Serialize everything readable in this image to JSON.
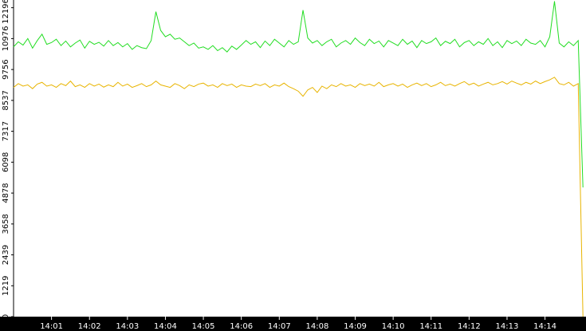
{
  "chart_data": {
    "type": "line",
    "x": [
      0,
      0.125,
      0.25,
      0.375,
      0.5,
      0.625,
      0.75,
      0.875,
      1,
      1.125,
      1.25,
      1.375,
      1.5,
      1.625,
      1.75,
      1.875,
      2,
      2.125,
      2.25,
      2.375,
      2.5,
      2.625,
      2.75,
      2.875,
      3,
      3.125,
      3.25,
      3.375,
      3.5,
      3.625,
      3.75,
      3.875,
      4,
      4.125,
      4.25,
      4.375,
      4.5,
      4.625,
      4.75,
      4.875,
      5,
      5.125,
      5.25,
      5.375,
      5.5,
      5.625,
      5.75,
      5.875,
      6,
      6.125,
      6.25,
      6.375,
      6.5,
      6.625,
      6.75,
      6.875,
      7,
      7.125,
      7.25,
      7.375,
      7.5,
      7.625,
      7.75,
      7.875,
      8,
      8.125,
      8.25,
      8.375,
      8.5,
      8.625,
      8.75,
      8.875,
      9,
      9.125,
      9.25,
      9.375,
      9.5,
      9.625,
      9.75,
      9.875,
      10,
      10.125,
      10.25,
      10.375,
      10.5,
      10.625,
      10.75,
      10.875,
      11,
      11.125,
      11.25,
      11.375,
      11.5,
      11.625,
      11.75,
      11.875,
      12,
      12.125,
      12.25,
      12.375,
      12.5,
      12.625,
      12.75,
      12.875,
      13,
      13.125,
      13.25,
      13.375,
      13.5,
      13.625,
      13.75,
      13.875,
      14,
      14.125,
      14.25,
      14.375,
      14.5,
      14.625,
      14.75,
      14.875,
      15
    ],
    "series": [
      {
        "color": "#22dd22",
        "values": [
          10650,
          10850,
          10720,
          10980,
          10600,
          10900,
          11150,
          10750,
          10820,
          10950,
          10700,
          10880,
          10650,
          10800,
          10920,
          10600,
          10870,
          10750,
          10830,
          10680,
          10900,
          10700,
          10820,
          10650,
          10780,
          10550,
          10700,
          10620,
          10580,
          10900,
          12040,
          11300,
          11050,
          11150,
          10950,
          11000,
          10850,
          10700,
          10800,
          10600,
          10650,
          10550,
          10700,
          10500,
          10620,
          10450,
          10680,
          10550,
          10720,
          10900,
          10750,
          10850,
          10620,
          10880,
          10700,
          10950,
          10800,
          10650,
          10900,
          10750,
          10850,
          12100,
          11000,
          10800,
          10900,
          10700,
          10850,
          10950,
          10650,
          10800,
          10900,
          10750,
          11000,
          10820,
          10700,
          10950,
          10780,
          10880,
          10650,
          10900,
          10800,
          10700,
          10950,
          10750,
          10880,
          10620,
          10900,
          10780,
          10850,
          11000,
          10700,
          10870,
          10780,
          10950,
          10650,
          10820,
          10900,
          10700,
          10850,
          10750,
          10980,
          10700,
          10850,
          10620,
          10900,
          10780,
          10880,
          10700,
          10950,
          10800,
          10750,
          10900,
          10650,
          11050,
          12450,
          10800,
          10650,
          10850,
          10700,
          10900,
          5100
        ]
      },
      {
        "color": "#e8b400",
        "values": [
          9050,
          9200,
          9100,
          9150,
          9000,
          9180,
          9250,
          9100,
          9150,
          9050,
          9200,
          9120,
          9300,
          9080,
          9150,
          9050,
          9200,
          9100,
          9180,
          9060,
          9150,
          9080,
          9250,
          9100,
          9180,
          9050,
          9120,
          9200,
          9080,
          9150,
          9300,
          9150,
          9100,
          9050,
          9200,
          9120,
          9000,
          9150,
          9080,
          9180,
          9220,
          9100,
          9150,
          9050,
          9200,
          9120,
          9180,
          9050,
          9150,
          9100,
          9080,
          9180,
          9120,
          9200,
          9050,
          9150,
          9100,
          9220,
          9080,
          9000,
          8900,
          8700,
          8950,
          9050,
          8850,
          9100,
          9000,
          9150,
          9080,
          9200,
          9100,
          9150,
          9050,
          9200,
          9120,
          9180,
          9100,
          9250,
          9080,
          9150,
          9200,
          9100,
          9180,
          9050,
          9150,
          9220,
          9120,
          9200,
          9080,
          9150,
          9250,
          9120,
          9180,
          9100,
          9200,
          9280,
          9150,
          9220,
          9100,
          9180,
          9250,
          9150,
          9200,
          9280,
          9180,
          9300,
          9220,
          9150,
          9250,
          9180,
          9300,
          9200,
          9280,
          9350,
          9450,
          9200,
          9150,
          9250,
          9100,
          9200,
          0
        ]
      }
    ],
    "xlim": [
      0,
      15.08
    ],
    "xticks": [
      {
        "value": 1,
        "label": "14:01"
      },
      {
        "value": 2,
        "label": "14:02"
      },
      {
        "value": 3,
        "label": "14:03"
      },
      {
        "value": 4,
        "label": "14:04"
      },
      {
        "value": 5,
        "label": "14:05"
      },
      {
        "value": 6,
        "label": "14:06"
      },
      {
        "value": 7,
        "label": "14:07"
      },
      {
        "value": 8,
        "label": "14:08"
      },
      {
        "value": 9,
        "label": "14:09"
      },
      {
        "value": 10,
        "label": "14:10"
      },
      {
        "value": 11,
        "label": "14:11"
      },
      {
        "value": 12,
        "label": "14:12"
      },
      {
        "value": 13,
        "label": "14:13"
      },
      {
        "value": 14,
        "label": "14:14"
      }
    ],
    "ylim": [
      0,
      12500
    ],
    "yticks": [
      0,
      1219,
      2439,
      3658,
      4878,
      6098,
      7317,
      8537,
      9756,
      10976,
      12196
    ]
  }
}
